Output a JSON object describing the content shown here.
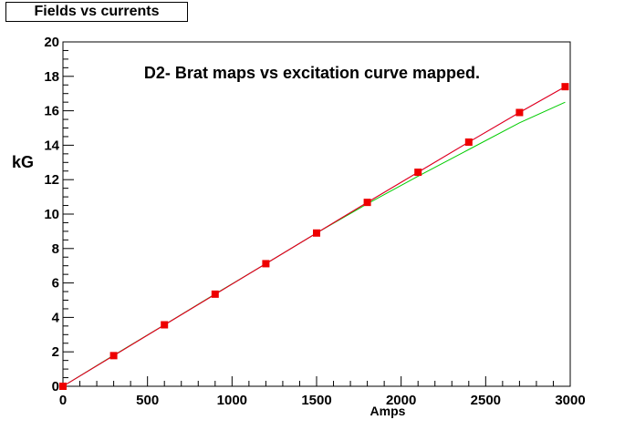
{
  "chart_data": {
    "type": "line",
    "title": "Fields vs currents",
    "annotation": "D2- Brat maps vs excitation curve mapped.",
    "xlabel": "Amps",
    "ylabel": "kG",
    "xlim": [
      0,
      3000
    ],
    "ylim": [
      0,
      20
    ],
    "x_ticks": [
      "0",
      "500",
      "1000",
      "1500",
      "2000",
      "2500",
      "3000"
    ],
    "y_ticks": [
      "0",
      "2",
      "4",
      "6",
      "8",
      "10",
      "12",
      "14",
      "16",
      "18",
      "20"
    ],
    "grid": false,
    "series": [
      {
        "type": "line",
        "color": "#00cc00",
        "x": [
          0,
          300,
          600,
          900,
          1200,
          1500,
          1800,
          2100,
          2400,
          2700,
          2970
        ],
        "values": [
          0,
          1.8,
          3.57,
          5.36,
          7.12,
          8.9,
          10.6,
          12.2,
          13.75,
          15.3,
          16.5
        ]
      },
      {
        "type": "line",
        "color": "#0000ff",
        "x": [
          0,
          300,
          600,
          900,
          1200,
          1500,
          1800,
          2100,
          2400,
          2700,
          2970
        ],
        "values": [
          0,
          1.78,
          3.56,
          5.34,
          7.12,
          8.9,
          10.68,
          12.43,
          14.18,
          15.9,
          17.4
        ]
      },
      {
        "type": "line",
        "color": "#ff0000",
        "x": [
          0,
          300,
          600,
          900,
          1200,
          1500,
          1800,
          2100,
          2400,
          2700,
          2970
        ],
        "values": [
          0,
          1.78,
          3.56,
          5.34,
          7.12,
          8.9,
          10.68,
          12.43,
          14.18,
          15.9,
          17.4
        ]
      },
      {
        "type": "scatter",
        "color": "#ee0000",
        "x": [
          0,
          300,
          600,
          900,
          1200,
          1500,
          1800,
          2100,
          2400,
          2700,
          2970
        ],
        "values": [
          0,
          1.78,
          3.57,
          5.35,
          7.12,
          8.9,
          10.68,
          12.43,
          14.18,
          15.9,
          17.4
        ]
      }
    ]
  }
}
